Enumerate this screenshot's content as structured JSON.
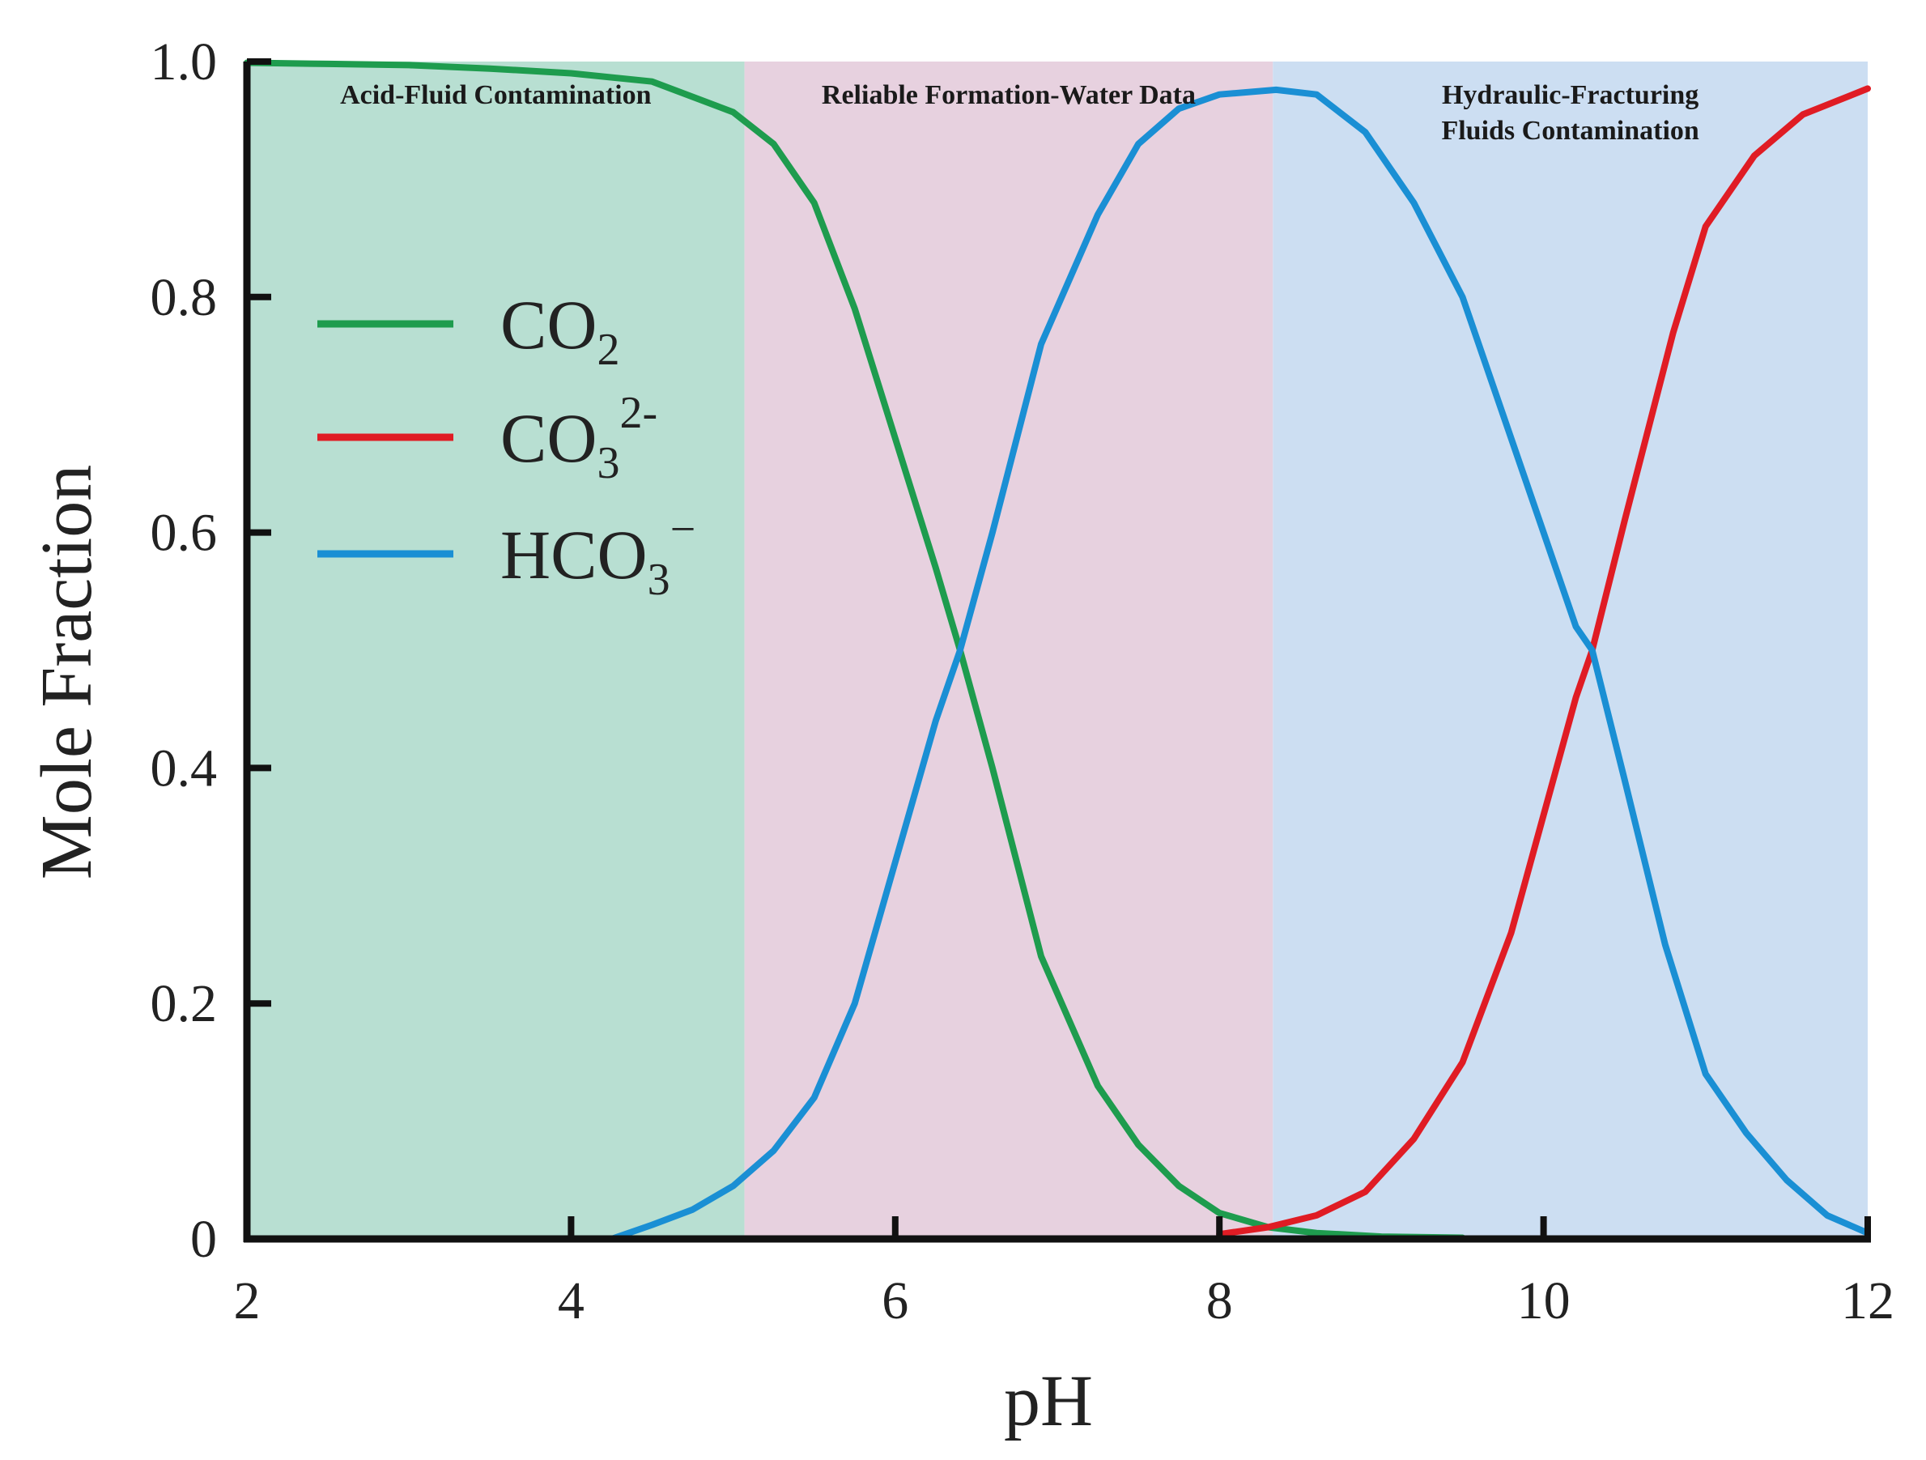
{
  "chart_data": {
    "type": "line",
    "title": "",
    "xlabel": "pH",
    "ylabel": "Mole Fraction",
    "xlim": [
      2,
      12
    ],
    "ylim": [
      0,
      1.0
    ],
    "x_ticks": [
      "2",
      "4",
      "6",
      "8",
      "10",
      "12"
    ],
    "y_ticks": [
      "0",
      "0.2",
      "0.4",
      "0.6",
      "0.8",
      "1.0"
    ],
    "grid": false,
    "legend_position": "left",
    "regions": [
      {
        "label_lines": [
          "Acid-Fluid Contamination"
        ],
        "x_start": 2.0,
        "x_end": 5.07,
        "color": "#b8dfd2"
      },
      {
        "label_lines": [
          "Reliable Formation-Water Data"
        ],
        "x_start": 5.07,
        "x_end": 8.33,
        "color": "#e7d1df"
      },
      {
        "label_lines": [
          "Hydraulic-Fracturing",
          "Fluids Contamination"
        ],
        "x_start": 8.33,
        "x_end": 12.0,
        "color": "#ccdef2"
      }
    ],
    "series": [
      {
        "name": "CO2",
        "legend_main": "CO",
        "legend_sub": "2",
        "legend_sup": "",
        "color": "#1e9c4e",
        "x": [
          2.0,
          2.5,
          3.0,
          3.5,
          4.0,
          4.5,
          5.0,
          5.25,
          5.5,
          5.75,
          6.0,
          6.25,
          6.4,
          6.6,
          6.9,
          7.25,
          7.5,
          7.75,
          8.0,
          8.3,
          8.6,
          9.0,
          9.5
        ],
        "values": [
          0.999,
          0.998,
          0.997,
          0.994,
          0.99,
          0.983,
          0.957,
          0.93,
          0.88,
          0.79,
          0.68,
          0.57,
          0.5,
          0.4,
          0.24,
          0.13,
          0.08,
          0.045,
          0.022,
          0.01,
          0.005,
          0.002,
          0.001
        ]
      },
      {
        "name": "CO3 2-",
        "legend_main": "CO",
        "legend_sub": "3",
        "legend_sup": "2-",
        "color": "#e01c24",
        "x": [
          8.0,
          8.3,
          8.6,
          8.9,
          9.2,
          9.5,
          9.8,
          10.0,
          10.2,
          10.3,
          10.5,
          10.8,
          11.0,
          11.3,
          11.6,
          12.0
        ],
        "values": [
          0.004,
          0.01,
          0.02,
          0.04,
          0.085,
          0.15,
          0.26,
          0.36,
          0.46,
          0.5,
          0.61,
          0.77,
          0.86,
          0.92,
          0.955,
          0.977
        ]
      },
      {
        "name": "HCO3 -",
        "legend_main": "HCO",
        "legend_sub": "3",
        "legend_sup": "−",
        "color": "#1a8fd4",
        "x": [
          3.8,
          4.25,
          4.5,
          4.75,
          5.0,
          5.25,
          5.5,
          5.75,
          6.0,
          6.25,
          6.4,
          6.6,
          6.9,
          7.25,
          7.5,
          7.75,
          8.0,
          8.35,
          8.6,
          8.9,
          9.2,
          9.5,
          9.8,
          10.0,
          10.2,
          10.3,
          10.5,
          10.75,
          11.0,
          11.25,
          11.5,
          11.75,
          12.0
        ],
        "values": [
          0.0,
          0.0,
          0.012,
          0.025,
          0.045,
          0.075,
          0.12,
          0.2,
          0.32,
          0.44,
          0.5,
          0.6,
          0.76,
          0.87,
          0.93,
          0.96,
          0.972,
          0.976,
          0.972,
          0.94,
          0.88,
          0.8,
          0.68,
          0.6,
          0.52,
          0.5,
          0.39,
          0.25,
          0.14,
          0.09,
          0.05,
          0.02,
          0.005
        ]
      }
    ]
  }
}
